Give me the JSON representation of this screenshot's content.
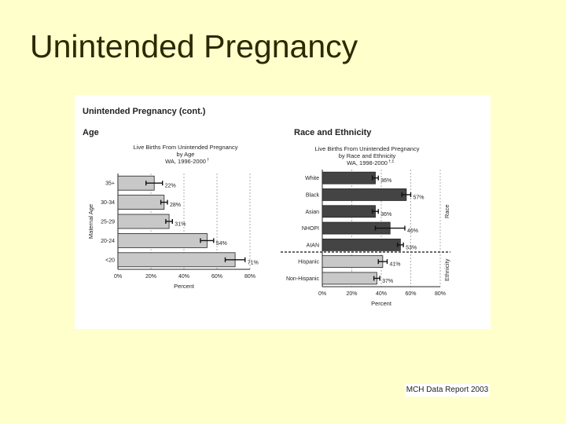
{
  "slide": {
    "title": "Unintended Pregnancy"
  },
  "panel": {
    "header": "Unintended Pregnancy (cont.)",
    "left_heading": "Age",
    "right_heading": "Race and Ethnicity"
  },
  "chart_data": [
    {
      "type": "bar",
      "orientation": "horizontal",
      "title": [
        "Live Births From Unintended Pregnancy",
        "by Age",
        "WA, 1996-2000"
      ],
      "title_mark": "†",
      "xlabel": "Percent",
      "ylabel": "Maternal Age",
      "xlim": [
        0,
        80
      ],
      "xticks": [
        "0%",
        "20%",
        "40%",
        "60%",
        "80%"
      ],
      "grid": "dashed vertical",
      "categories": [
        "35+",
        "30-34",
        "25-29",
        "20-24",
        "<20"
      ],
      "values": [
        22,
        28,
        31,
        54,
        71
      ],
      "labels": [
        "22%",
        "28%",
        "31%",
        "54%",
        "71%"
      ],
      "errors": [
        5,
        2,
        2,
        4,
        6
      ],
      "bar_color": "#c8c8c8"
    },
    {
      "type": "bar",
      "orientation": "horizontal",
      "title": [
        "Live Births From Unintended Pregnancy",
        "by Race and Ethnicity",
        "WA, 1998-2000"
      ],
      "title_mark": "†,‡",
      "xlabel": "Percent",
      "xlim": [
        0,
        80
      ],
      "xticks": [
        "0%",
        "20%",
        "40%",
        "60%",
        "80%"
      ],
      "grid": "dashed vertical",
      "categories": [
        "White",
        "Black",
        "Asian",
        "NHOPI",
        "AIAN",
        "Hispanic",
        "Non-Hispanic"
      ],
      "values": [
        36,
        57,
        36,
        46,
        53,
        41,
        37
      ],
      "labels": [
        "36%",
        "57%",
        "36%",
        "46%",
        "53%",
        "41%",
        "37%"
      ],
      "errors": [
        2,
        3,
        2,
        10,
        2,
        3,
        2
      ],
      "bar_colors": [
        "#444444",
        "#444444",
        "#444444",
        "#444444",
        "#444444",
        "#c8c8c8",
        "#c8c8c8"
      ],
      "group_labels": [
        "Race",
        "Ethnicity"
      ]
    }
  ],
  "footer": {
    "source": "MCH Data Report 2003"
  }
}
